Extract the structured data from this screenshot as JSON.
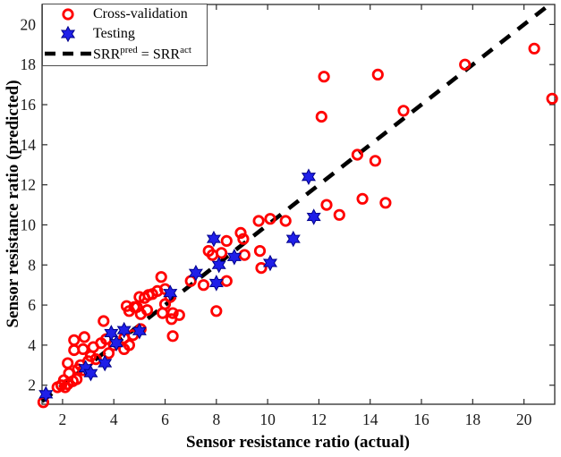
{
  "chart_data": {
    "type": "scatter",
    "title": "",
    "xlabel": "Sensor resistance ratio (actual)",
    "ylabel": "Sensor resistance ratio (predicted)",
    "xlim": [
      1.2,
      21.2
    ],
    "ylim": [
      1.05,
      21.0
    ],
    "xticks": [
      2,
      4,
      6,
      8,
      10,
      12,
      14,
      16,
      18,
      20
    ],
    "yticks": [
      2,
      4,
      6,
      8,
      10,
      12,
      14,
      16,
      18,
      20
    ],
    "grid": false,
    "legend_position": "upper-left",
    "series": [
      {
        "name": "Cross-validation",
        "marker": "circle",
        "color": "#ff0000",
        "points": [
          [
            1.25,
            1.15
          ],
          [
            1.8,
            1.9
          ],
          [
            1.95,
            2.0
          ],
          [
            2.05,
            2.25
          ],
          [
            2.1,
            1.9
          ],
          [
            2.2,
            2.05
          ],
          [
            2.25,
            2.6
          ],
          [
            2.2,
            3.1
          ],
          [
            2.4,
            2.2
          ],
          [
            2.45,
            4.25
          ],
          [
            2.45,
            3.75
          ],
          [
            2.55,
            2.3
          ],
          [
            2.6,
            2.8
          ],
          [
            2.7,
            3.0
          ],
          [
            2.8,
            2.75
          ],
          [
            2.85,
            4.4
          ],
          [
            2.8,
            3.8
          ],
          [
            3.0,
            3.2
          ],
          [
            3.1,
            3.45
          ],
          [
            3.2,
            3.9
          ],
          [
            3.3,
            3.3
          ],
          [
            3.6,
            5.2
          ],
          [
            3.5,
            4.1
          ],
          [
            3.7,
            4.3
          ],
          [
            3.8,
            3.6
          ],
          [
            4.0,
            4.0
          ],
          [
            4.4,
            4.35
          ],
          [
            4.4,
            3.8
          ],
          [
            4.6,
            4.0
          ],
          [
            4.6,
            5.7
          ],
          [
            4.75,
            4.5
          ],
          [
            4.9,
            5.9
          ],
          [
            5.05,
            4.8
          ],
          [
            5.05,
            5.55
          ],
          [
            5.3,
            5.75
          ],
          [
            5.0,
            6.4
          ],
          [
            5.2,
            6.35
          ],
          [
            5.35,
            6.5
          ],
          [
            5.5,
            6.55
          ],
          [
            5.7,
            6.7
          ],
          [
            5.85,
            7.4
          ],
          [
            6.0,
            6.8
          ],
          [
            6.0,
            6.05
          ],
          [
            6.2,
            6.4
          ],
          [
            6.25,
            5.3
          ],
          [
            6.3,
            5.6
          ],
          [
            6.3,
            4.45
          ],
          [
            6.55,
            5.5
          ],
          [
            5.9,
            5.6
          ],
          [
            4.5,
            5.95
          ],
          [
            4.8,
            5.9
          ],
          [
            7.0,
            7.2
          ],
          [
            7.5,
            7.0
          ],
          [
            7.7,
            8.7
          ],
          [
            7.85,
            8.5
          ],
          [
            8.2,
            8.6
          ],
          [
            8.4,
            7.2
          ],
          [
            8.4,
            9.2
          ],
          [
            8.95,
            9.6
          ],
          [
            9.05,
            9.3
          ],
          [
            9.1,
            8.5
          ],
          [
            9.65,
            10.2
          ],
          [
            9.7,
            8.7
          ],
          [
            9.75,
            7.85
          ],
          [
            10.1,
            10.3
          ],
          [
            10.7,
            10.2
          ],
          [
            8.0,
            5.7
          ],
          [
            12.3,
            11.0
          ],
          [
            12.8,
            10.5
          ],
          [
            13.7,
            11.3
          ],
          [
            14.6,
            11.1
          ],
          [
            13.5,
            13.5
          ],
          [
            14.2,
            13.2
          ],
          [
            12.2,
            17.4
          ],
          [
            14.3,
            17.5
          ],
          [
            12.1,
            15.4
          ],
          [
            15.3,
            15.7
          ],
          [
            17.7,
            18.0
          ],
          [
            20.4,
            18.8
          ],
          [
            21.1,
            16.3
          ]
        ]
      },
      {
        "name": "Testing",
        "marker": "hexagram",
        "color": "#1f1fe8",
        "edge_color": "#00008b",
        "points": [
          [
            1.35,
            1.55
          ],
          [
            2.9,
            2.85
          ],
          [
            3.1,
            2.6
          ],
          [
            3.65,
            3.1
          ],
          [
            3.9,
            4.6
          ],
          [
            4.1,
            4.1
          ],
          [
            4.4,
            4.75
          ],
          [
            5.0,
            4.7
          ],
          [
            6.2,
            6.6
          ],
          [
            7.2,
            7.6
          ],
          [
            7.9,
            9.3
          ],
          [
            8.0,
            7.1
          ],
          [
            8.1,
            8.0
          ],
          [
            8.7,
            8.4
          ],
          [
            10.1,
            8.1
          ],
          [
            11.0,
            9.3
          ],
          [
            11.6,
            12.4
          ],
          [
            11.8,
            10.4
          ]
        ]
      },
      {
        "name": "SRRpred = SRRact",
        "marker": "none",
        "line_style": "dashed",
        "color": "#000000",
        "points": [
          [
            1.2,
            1.2
          ],
          [
            21.0,
            21.0
          ]
        ]
      }
    ]
  },
  "legend": {
    "cross_validation_label": "Cross-validation",
    "testing_label": "Testing",
    "eq": {
      "base1": "SRR",
      "sup1": "pred",
      "equals": " = ",
      "base2": "SRR",
      "sup2": "act"
    }
  },
  "colors": {
    "cross_validation": "#ff0000",
    "testing_fill": "#1f1fe8",
    "testing_edge": "#00008b",
    "identity_line": "#000000",
    "axis": "#2b2b2b",
    "tick_label": "#1a1a1a"
  }
}
